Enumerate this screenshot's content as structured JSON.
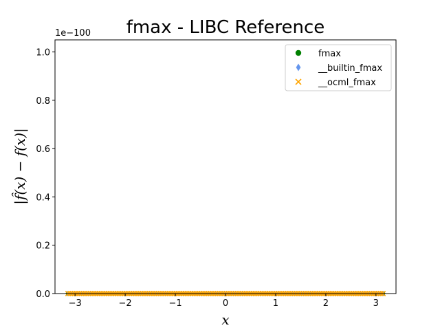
{
  "chart_data": {
    "type": "scatter",
    "title": "fmax - LIBC Reference",
    "xlabel": "x",
    "ylabel": "|f̂(x) − f(x)|",
    "y_offset_label": "1e−100",
    "xlim": [
      -3.4,
      3.4
    ],
    "ylim": [
      0,
      1.05
    ],
    "x_ticks": [
      -3,
      -2,
      -1,
      0,
      1,
      2,
      3
    ],
    "x_tick_labels": [
      "−3",
      "−2",
      "−1",
      "0",
      "1",
      "2",
      "3"
    ],
    "y_ticks": [
      0.0,
      0.2,
      0.4,
      0.6,
      0.8,
      1.0
    ],
    "y_tick_labels": [
      "0.0",
      "0.2",
      "0.4",
      "0.6",
      "0.8",
      "1.0"
    ],
    "x_range": [
      -3.14159,
      3.14159
    ],
    "series": [
      {
        "name": "fmax",
        "marker": "circle",
        "color": "#008000",
        "y_value": 0
      },
      {
        "name": "__builtin_fmax",
        "marker": "diamond",
        "color": "#6495ED",
        "y_value": 0
      },
      {
        "name": "__ocml_fmax",
        "marker": "x",
        "color": "#FFA500",
        "y_value": 0
      }
    ],
    "legend_position": "upper right",
    "grid": false
  }
}
